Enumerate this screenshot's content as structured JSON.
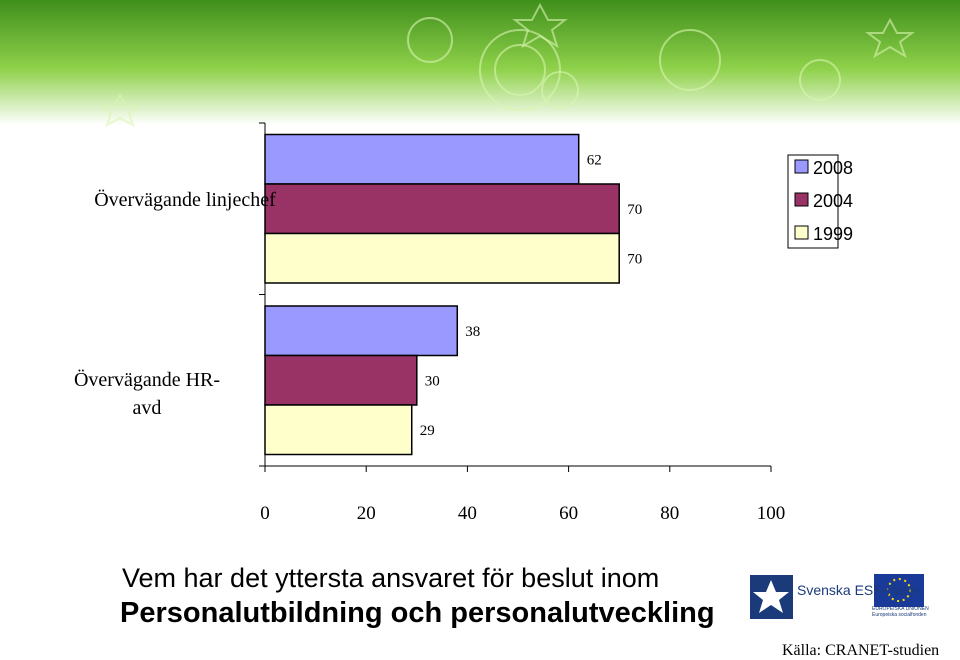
{
  "chart_data": {
    "type": "bar",
    "orientation": "horizontal",
    "title": "Vem har det yttersta ansvaret för beslut inom",
    "subtitle": "Personalutbildning och personalutveckling",
    "categories": [
      "Övervägande linjechef",
      "Övervägande HR-avd"
    ],
    "series": [
      {
        "name": "2008",
        "color": "#9999ff",
        "values": [
          62,
          38
        ]
      },
      {
        "name": "2004",
        "color": "#993366",
        "values": [
          70,
          30
        ]
      },
      {
        "name": "1999",
        "color": "#ffffcc",
        "values": [
          70,
          29
        ]
      }
    ],
    "xlim": [
      0,
      100
    ],
    "xticks": [
      0,
      20,
      40,
      60,
      80,
      100
    ],
    "legend": "upper right"
  },
  "logos": {
    "esf": "Svenska ESF-rådet",
    "eu": "EUROPEISKA UNIONEN Europeiska socialfonden"
  },
  "source": "Källa: CRANET-studien"
}
